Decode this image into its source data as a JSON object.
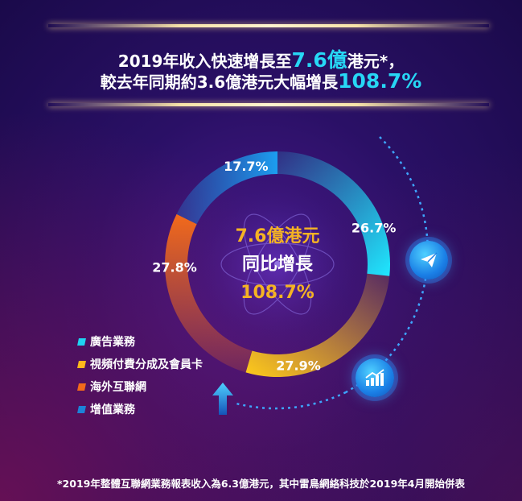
{
  "headline": {
    "line1_prefix": "2019年收入快速增長至",
    "line1_highlight": "7.6億",
    "line1_suffix": "港元*，",
    "line2_prefix": "較去年同期約3.6億港元大幅增長",
    "line2_highlight": "108.7%"
  },
  "center": {
    "amount": "7.6億港元",
    "label": "同比增長",
    "growth": "108.7%"
  },
  "footnote": "*2019年整體互聯網業務報表收入為6.3億港元，其中雷鳥網絡科技於2019年4月開始併表",
  "colors": {
    "highlight": "#27d7f5",
    "gold": "#f5b323"
  },
  "chart_data": {
    "type": "pie",
    "donut": true,
    "categories": [
      "廣告業務",
      "視頻付費分成及會員卡",
      "海外互聯網",
      "增值業務"
    ],
    "values": [
      26.7,
      27.9,
      27.8,
      17.7
    ],
    "labels": [
      "26.7%",
      "27.9%",
      "27.8%",
      "17.7%"
    ],
    "colors": [
      "#1fd4f2",
      "#ffb81c",
      "#f26a1b",
      "#1c82d8"
    ],
    "legend_position": "bottom-left"
  }
}
